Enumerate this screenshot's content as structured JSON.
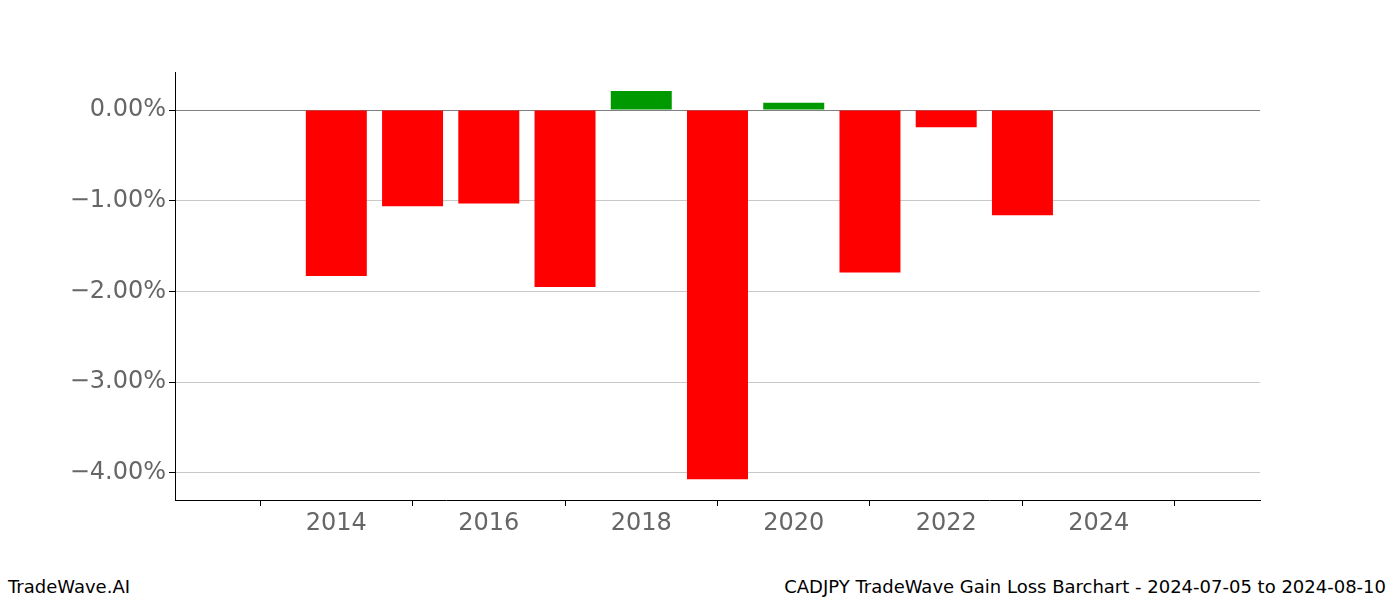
{
  "chart_data": {
    "type": "bar",
    "title": "CADJPY TradeWave Gain Loss Barchart - 2024-07-05 to 2024-08-10",
    "subtitle": "TradeWave.AI",
    "x": [
      2014,
      2015,
      2016,
      2017,
      2018,
      2019,
      2020,
      2021,
      2022,
      2023
    ],
    "values": [
      -1.83,
      -1.06,
      -1.03,
      -1.95,
      0.21,
      -4.07,
      0.08,
      -1.79,
      -0.19,
      -1.16
    ],
    "colors": [
      "#ff0000",
      "#ff0000",
      "#ff0000",
      "#ff0000",
      "#009900",
      "#ff0000",
      "#009900",
      "#ff0000",
      "#ff0000",
      "#ff0000"
    ],
    "xlim": [
      2013.07,
      2024.93
    ],
    "xticks": [
      2014,
      2016,
      2018,
      2020,
      2022,
      2024
    ],
    "ylim": [
      -4.3,
      0.42
    ],
    "yticks": [
      {
        "value": -4,
        "label": "−4.00%"
      },
      {
        "value": -3,
        "label": "−3.00%"
      },
      {
        "value": -2,
        "label": "−2.00%"
      },
      {
        "value": -1,
        "label": "−1.00%"
      },
      {
        "value": 0,
        "label": "0.00%"
      }
    ],
    "grid": true
  }
}
